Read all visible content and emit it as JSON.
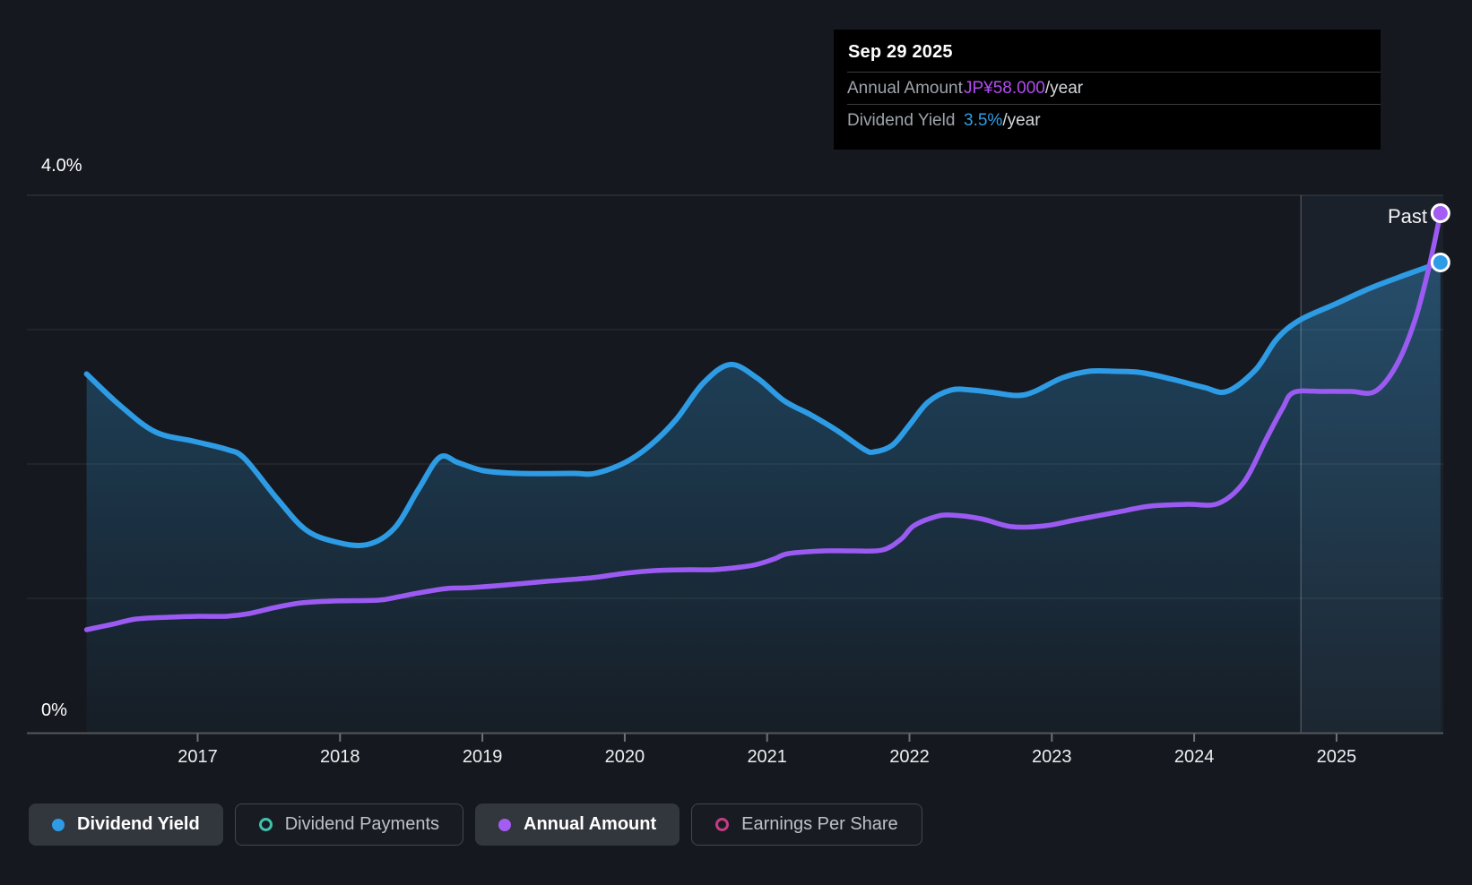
{
  "tooltip": {
    "date": "Sep 29 2025",
    "rows": [
      {
        "label": "Annual Amount",
        "value": "JP¥58.000",
        "suffix": "/year",
        "color": "#b44bf2"
      },
      {
        "label": "Dividend Yield",
        "value": "3.5%",
        "suffix": "/year",
        "color": "#2f9fe9"
      }
    ]
  },
  "chart": {
    "past_label": "Past",
    "y_axis": {
      "top_label": "4.0%",
      "bottom_label": "0%"
    }
  },
  "legend": {
    "items": [
      {
        "label": "Dividend Yield",
        "color": "#2e9be5",
        "marker": "dot",
        "active": true
      },
      {
        "label": "Dividend Payments",
        "color": "#3fc2ae",
        "marker": "ring",
        "active": false
      },
      {
        "label": "Annual Amount",
        "color": "#a35df2",
        "marker": "dot",
        "active": true
      },
      {
        "label": "Earnings Per Share",
        "color": "#c33d83",
        "marker": "ring",
        "active": false
      }
    ]
  },
  "chart_data": {
    "type": "area",
    "title": "Dividend history",
    "x_ticks": [
      "2017",
      "2018",
      "2019",
      "2020",
      "2021",
      "2022",
      "2023",
      "2024",
      "2025"
    ],
    "y_ticks_pct": [
      0,
      1,
      2,
      3,
      4
    ],
    "y_axis_labels": {
      "top": "4.0%",
      "bottom": "0%"
    },
    "xlim_years": [
      2016.22,
      2025.8
    ],
    "ylim_pct": [
      0,
      4
    ],
    "grid": true,
    "legend_position": "bottom",
    "past_divider_year": 2024.75,
    "series": [
      {
        "name": "Dividend Yield",
        "unit": "%",
        "color": "#2e9be5",
        "fill": true,
        "end_label": "3.5%/year",
        "points": [
          [
            2016.22,
            2.67
          ],
          [
            2016.45,
            2.44
          ],
          [
            2016.7,
            2.24
          ],
          [
            2016.97,
            2.17
          ],
          [
            2017.2,
            2.11
          ],
          [
            2017.33,
            2.04
          ],
          [
            2017.56,
            1.74
          ],
          [
            2017.76,
            1.51
          ],
          [
            2017.97,
            1.42
          ],
          [
            2018.19,
            1.4
          ],
          [
            2018.38,
            1.52
          ],
          [
            2018.55,
            1.81
          ],
          [
            2018.7,
            2.05
          ],
          [
            2018.83,
            2.01
          ],
          [
            2019.01,
            1.95
          ],
          [
            2019.26,
            1.93
          ],
          [
            2019.64,
            1.93
          ],
          [
            2019.79,
            1.93
          ],
          [
            2020.0,
            2.01
          ],
          [
            2020.18,
            2.14
          ],
          [
            2020.36,
            2.33
          ],
          [
            2020.55,
            2.6
          ],
          [
            2020.74,
            2.74
          ],
          [
            2020.93,
            2.64
          ],
          [
            2021.12,
            2.47
          ],
          [
            2021.3,
            2.37
          ],
          [
            2021.49,
            2.25
          ],
          [
            2021.68,
            2.11
          ],
          [
            2021.75,
            2.09
          ],
          [
            2021.88,
            2.14
          ],
          [
            2022.0,
            2.29
          ],
          [
            2022.13,
            2.46
          ],
          [
            2022.29,
            2.55
          ],
          [
            2022.44,
            2.55
          ],
          [
            2022.6,
            2.53
          ],
          [
            2022.76,
            2.51
          ],
          [
            2022.88,
            2.54
          ],
          [
            2023.07,
            2.64
          ],
          [
            2023.26,
            2.69
          ],
          [
            2023.45,
            2.69
          ],
          [
            2023.63,
            2.68
          ],
          [
            2023.85,
            2.63
          ],
          [
            2024.07,
            2.57
          ],
          [
            2024.23,
            2.54
          ],
          [
            2024.43,
            2.7
          ],
          [
            2024.58,
            2.93
          ],
          [
            2024.74,
            3.07
          ],
          [
            2024.99,
            3.19
          ],
          [
            2025.24,
            3.31
          ],
          [
            2025.49,
            3.41
          ],
          [
            2025.73,
            3.5
          ]
        ]
      },
      {
        "name": "Annual Amount",
        "unit": "JP¥/year",
        "color": "#9b5bf2",
        "fill": false,
        "end_label": "JP¥58.000/year",
        "points": [
          [
            2016.22,
            11.5
          ],
          [
            2016.4,
            12.1
          ],
          [
            2016.57,
            12.7
          ],
          [
            2016.8,
            12.9
          ],
          [
            2017.01,
            13.0
          ],
          [
            2017.2,
            13.0
          ],
          [
            2017.36,
            13.3
          ],
          [
            2017.55,
            14.0
          ],
          [
            2017.73,
            14.5
          ],
          [
            2017.95,
            14.7
          ],
          [
            2018.27,
            14.8
          ],
          [
            2018.42,
            15.2
          ],
          [
            2018.55,
            15.6
          ],
          [
            2018.75,
            16.1
          ],
          [
            2018.92,
            16.2
          ],
          [
            2019.17,
            16.5
          ],
          [
            2019.45,
            16.9
          ],
          [
            2019.77,
            17.3
          ],
          [
            2020.0,
            17.8
          ],
          [
            2020.21,
            18.1
          ],
          [
            2020.45,
            18.2
          ],
          [
            2020.62,
            18.2
          ],
          [
            2020.82,
            18.5
          ],
          [
            2020.93,
            18.8
          ],
          [
            2021.05,
            19.4
          ],
          [
            2021.15,
            20.0
          ],
          [
            2021.4,
            20.3
          ],
          [
            2021.6,
            20.3
          ],
          [
            2021.81,
            20.4
          ],
          [
            2021.94,
            21.6
          ],
          [
            2022.03,
            23.1
          ],
          [
            2022.18,
            24.1
          ],
          [
            2022.29,
            24.3
          ],
          [
            2022.5,
            23.9
          ],
          [
            2022.72,
            23.0
          ],
          [
            2022.95,
            23.1
          ],
          [
            2023.18,
            23.8
          ],
          [
            2023.45,
            24.6
          ],
          [
            2023.69,
            25.3
          ],
          [
            2023.95,
            25.5
          ],
          [
            2024.17,
            25.6
          ],
          [
            2024.35,
            28.0
          ],
          [
            2024.5,
            32.6
          ],
          [
            2024.62,
            36.2
          ],
          [
            2024.7,
            38.0
          ],
          [
            2024.9,
            38.1
          ],
          [
            2025.1,
            38.1
          ],
          [
            2025.27,
            38.1
          ],
          [
            2025.42,
            41.0
          ],
          [
            2025.55,
            46.0
          ],
          [
            2025.65,
            52.0
          ],
          [
            2025.73,
            58.0
          ]
        ]
      }
    ]
  }
}
